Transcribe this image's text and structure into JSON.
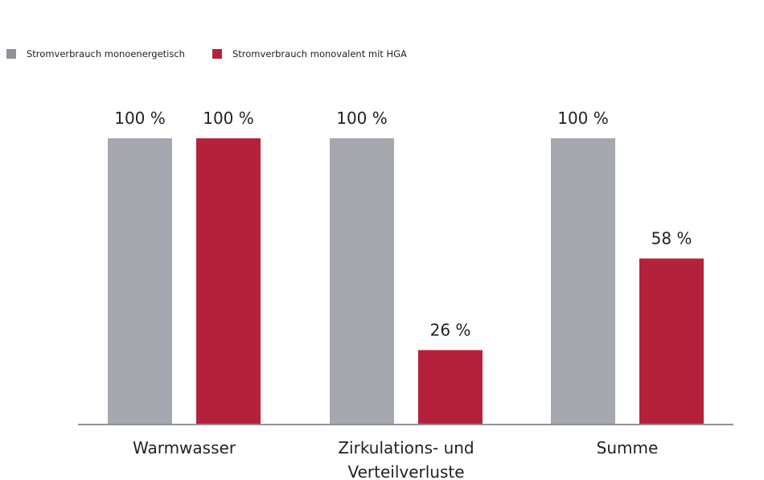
{
  "chart_data": {
    "type": "bar",
    "categories": [
      [
        "Warmwasser"
      ],
      [
        "Zirkulations- und",
        "Verteilverluste"
      ],
      [
        "Summe"
      ]
    ],
    "series": [
      {
        "name": "Stromverbrauch monoenergetisch",
        "color": "#a5a8ae",
        "values": [
          100,
          100,
          100
        ],
        "labels": [
          "100 %",
          "100 %",
          "100 %"
        ]
      },
      {
        "name": "Stromverbrauch monovalent mit HGA",
        "color": "#b5213b",
        "values": [
          100,
          26,
          58
        ],
        "labels": [
          "100 %",
          "26 %",
          "58 %"
        ]
      }
    ],
    "ylim": [
      0,
      100
    ],
    "grid": false,
    "legend_position": "top-left"
  }
}
